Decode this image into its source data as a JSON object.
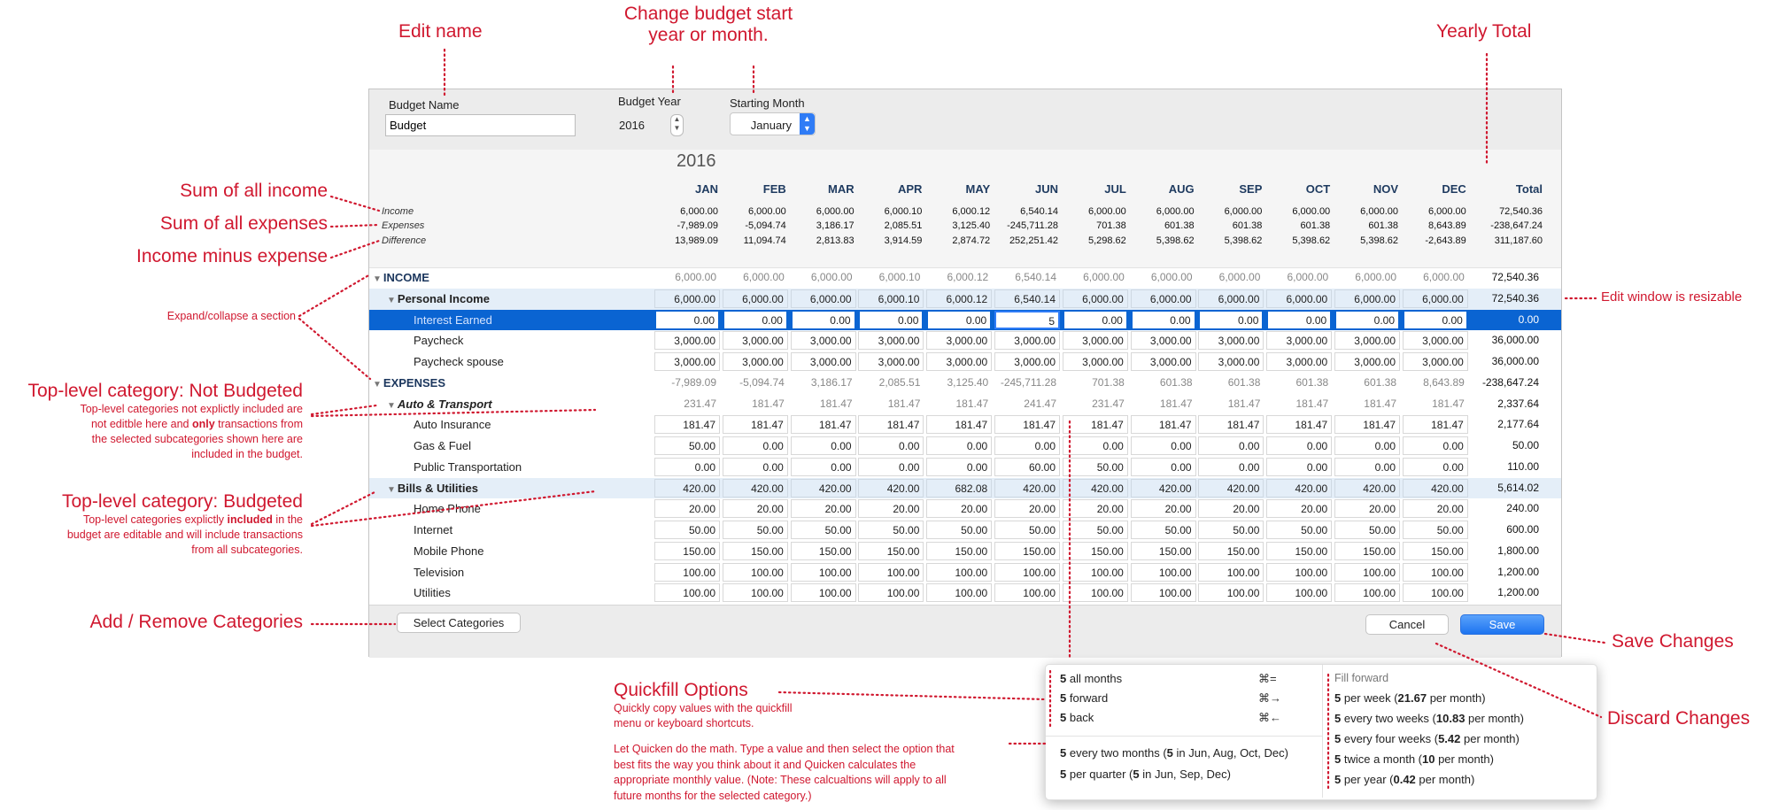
{
  "colors": {
    "accent": "#0a64d2",
    "annotation": "#d0182f",
    "budgeted_row": "#e4eef8",
    "save_button": "#1d74f0"
  },
  "form": {
    "budget_name_label": "Budget Name",
    "budget_name_value": "Budget",
    "budget_year_label": "Budget Year",
    "budget_year_value": "2016",
    "starting_month_label": "Starting Month",
    "starting_month_value": "January"
  },
  "table": {
    "year": "2016",
    "months": [
      "JAN",
      "FEB",
      "MAR",
      "APR",
      "MAY",
      "JUN",
      "JUL",
      "AUG",
      "SEP",
      "OCT",
      "NOV",
      "DEC"
    ],
    "total_label": "Total",
    "summary": [
      {
        "label": "Income",
        "values": [
          "6,000.00",
          "6,000.00",
          "6,000.00",
          "6,000.10",
          "6,000.12",
          "6,540.14",
          "6,000.00",
          "6,000.00",
          "6,000.00",
          "6,000.00",
          "6,000.00",
          "6,000.00"
        ],
        "total": "72,540.36"
      },
      {
        "label": "Expenses",
        "values": [
          "-7,989.09",
          "-5,094.74",
          "3,186.17",
          "2,085.51",
          "3,125.40",
          "-245,711.28",
          "701.38",
          "601.38",
          "601.38",
          "601.38",
          "601.38",
          "8,643.89"
        ],
        "total": "-238,647.24"
      },
      {
        "label": "Difference",
        "values": [
          "13,989.09",
          "11,094.74",
          "2,813.83",
          "3,914.59",
          "2,874.72",
          "252,251.42",
          "5,298.62",
          "5,398.62",
          "5,398.62",
          "5,398.62",
          "5,398.62",
          "-2,643.89"
        ],
        "total": "311,187.60"
      }
    ],
    "rows": [
      {
        "kind": "section",
        "name": "INCOME",
        "values": [
          "6,000.00",
          "6,000.00",
          "6,000.00",
          "6,000.10",
          "6,000.12",
          "6,540.14",
          "6,000.00",
          "6,000.00",
          "6,000.00",
          "6,000.00",
          "6,000.00",
          "6,000.00"
        ],
        "total": "72,540.36"
      },
      {
        "kind": "budgeted",
        "name": "Personal Income",
        "values": [
          "6,000.00",
          "6,000.00",
          "6,000.00",
          "6,000.10",
          "6,000.12",
          "6,540.14",
          "6,000.00",
          "6,000.00",
          "6,000.00",
          "6,000.00",
          "6,000.00",
          "6,000.00"
        ],
        "total": "72,540.36"
      },
      {
        "kind": "selected",
        "name": "Interest Earned",
        "values": [
          "0.00",
          "0.00",
          "0.00",
          "0.00",
          "0.00",
          "5",
          "0.00",
          "0.00",
          "0.00",
          "0.00",
          "0.00",
          "0.00"
        ],
        "total": "0.00"
      },
      {
        "kind": "leaf",
        "name": "Paycheck",
        "values": [
          "3,000.00",
          "3,000.00",
          "3,000.00",
          "3,000.00",
          "3,000.00",
          "3,000.00",
          "3,000.00",
          "3,000.00",
          "3,000.00",
          "3,000.00",
          "3,000.00",
          "3,000.00"
        ],
        "total": "36,000.00"
      },
      {
        "kind": "leaf",
        "name": "Paycheck spouse",
        "values": [
          "3,000.00",
          "3,000.00",
          "3,000.00",
          "3,000.00",
          "3,000.00",
          "3,000.00",
          "3,000.00",
          "3,000.00",
          "3,000.00",
          "3,000.00",
          "3,000.00",
          "3,000.00"
        ],
        "total": "36,000.00"
      },
      {
        "kind": "section",
        "name": "EXPENSES",
        "values": [
          "-7,989.09",
          "-5,094.74",
          "3,186.17",
          "2,085.51",
          "3,125.40",
          "-245,711.28",
          "701.38",
          "601.38",
          "601.38",
          "601.38",
          "601.38",
          "8,643.89"
        ],
        "total": "-238,647.24"
      },
      {
        "kind": "notbudgeted",
        "name": "Auto & Transport",
        "values": [
          "231.47",
          "181.47",
          "181.47",
          "181.47",
          "181.47",
          "241.47",
          "231.47",
          "181.47",
          "181.47",
          "181.47",
          "181.47",
          "181.47"
        ],
        "total": "2,337.64"
      },
      {
        "kind": "leaf",
        "name": "Auto Insurance",
        "values": [
          "181.47",
          "181.47",
          "181.47",
          "181.47",
          "181.47",
          "181.47",
          "181.47",
          "181.47",
          "181.47",
          "181.47",
          "181.47",
          "181.47"
        ],
        "total": "2,177.64"
      },
      {
        "kind": "leaf",
        "name": "Gas & Fuel",
        "values": [
          "50.00",
          "0.00",
          "0.00",
          "0.00",
          "0.00",
          "0.00",
          "0.00",
          "0.00",
          "0.00",
          "0.00",
          "0.00",
          "0.00"
        ],
        "total": "50.00"
      },
      {
        "kind": "leaf",
        "name": "Public Transportation",
        "values": [
          "0.00",
          "0.00",
          "0.00",
          "0.00",
          "0.00",
          "60.00",
          "50.00",
          "0.00",
          "0.00",
          "0.00",
          "0.00",
          "0.00"
        ],
        "total": "110.00"
      },
      {
        "kind": "budgeted",
        "name": "Bills & Utilities",
        "values": [
          "420.00",
          "420.00",
          "420.00",
          "420.00",
          "682.08",
          "420.00",
          "420.00",
          "420.00",
          "420.00",
          "420.00",
          "420.00",
          "420.00"
        ],
        "total": "5,614.02"
      },
      {
        "kind": "leaf",
        "name": "Home Phone",
        "values": [
          "20.00",
          "20.00",
          "20.00",
          "20.00",
          "20.00",
          "20.00",
          "20.00",
          "20.00",
          "20.00",
          "20.00",
          "20.00",
          "20.00"
        ],
        "total": "240.00"
      },
      {
        "kind": "leaf",
        "name": "Internet",
        "values": [
          "50.00",
          "50.00",
          "50.00",
          "50.00",
          "50.00",
          "50.00",
          "50.00",
          "50.00",
          "50.00",
          "50.00",
          "50.00",
          "50.00"
        ],
        "total": "600.00"
      },
      {
        "kind": "leaf",
        "name": "Mobile Phone",
        "values": [
          "150.00",
          "150.00",
          "150.00",
          "150.00",
          "150.00",
          "150.00",
          "150.00",
          "150.00",
          "150.00",
          "150.00",
          "150.00",
          "150.00"
        ],
        "total": "1,800.00"
      },
      {
        "kind": "leaf",
        "name": "Television",
        "values": [
          "100.00",
          "100.00",
          "100.00",
          "100.00",
          "100.00",
          "100.00",
          "100.00",
          "100.00",
          "100.00",
          "100.00",
          "100.00",
          "100.00"
        ],
        "total": "1,200.00"
      },
      {
        "kind": "leaf",
        "name": "Utilities",
        "values": [
          "100.00",
          "100.00",
          "100.00",
          "100.00",
          "100.00",
          "100.00",
          "100.00",
          "100.00",
          "100.00",
          "100.00",
          "100.00",
          "100.00"
        ],
        "total": "1,200.00"
      }
    ]
  },
  "quickfill": {
    "items": [
      {
        "parts": [
          {
            "b": "5"
          },
          {
            "t": " all months"
          }
        ],
        "shortcut": "⌘="
      },
      {
        "parts": [
          {
            "b": "5"
          },
          {
            "t": " forward"
          }
        ],
        "shortcut": "⌘→"
      },
      {
        "parts": [
          {
            "b": "5"
          },
          {
            "t": " back"
          }
        ],
        "shortcut": "⌘←"
      }
    ],
    "fill_forward_label": "Fill forward",
    "fill_items": [
      [
        {
          "b": "5"
        },
        {
          "t": " per week ("
        },
        {
          "b": "21.67"
        },
        {
          "t": " per month)"
        }
      ],
      [
        {
          "b": "5"
        },
        {
          "t": " every two weeks ("
        },
        {
          "b": "10.83"
        },
        {
          "t": " per month)"
        }
      ],
      [
        {
          "b": "5"
        },
        {
          "t": " every four weeks ("
        },
        {
          "b": "5.42"
        },
        {
          "t": " per month)"
        }
      ],
      [
        {
          "b": "5"
        },
        {
          "t": " twice a month ("
        },
        {
          "b": "10"
        },
        {
          "t": " per month)"
        }
      ],
      [
        {
          "b": "5"
        },
        {
          "t": " per year ("
        },
        {
          "b": "0.42"
        },
        {
          "t": " per month)"
        }
      ]
    ],
    "period_items": [
      [
        {
          "b": "5"
        },
        {
          "t": " every two months ("
        },
        {
          "b": "5"
        },
        {
          "t": " in Jun, Aug, Oct, Dec)"
        }
      ],
      [
        {
          "b": "5"
        },
        {
          "t": " per quarter ("
        },
        {
          "b": "5"
        },
        {
          "t": " in Jun, Sep, Dec)"
        }
      ]
    ]
  },
  "footer": {
    "select_categories": "Select Categories",
    "cancel": "Cancel",
    "save": "Save"
  },
  "annotations": {
    "edit_name": "Edit name",
    "change_start_1": "Change budget start",
    "change_start_2": "year or month.",
    "yearly_total": "Yearly Total",
    "sum_income": "Sum of all income",
    "sum_expenses": "Sum of all expenses",
    "income_minus": "Income minus expense",
    "expand_collapse": "Expand/collapse a section",
    "resizable": "Edit window is resizable",
    "not_budgeted_title": "Top-level category: Not Budgeted",
    "not_budgeted_1": "Top-level categories not explictly included are",
    "not_budgeted_2a": "not editble here and ",
    "not_budgeted_2b": "only",
    "not_budgeted_2c": " transactions from",
    "not_budgeted_3": "the selected subcategories shown here are",
    "not_budgeted_4": "included in the budget.",
    "budgeted_title": "Top-level category: Budgeted",
    "budgeted_1a": "Top-level categories explictly ",
    "budgeted_1b": "included",
    "budgeted_1c": " in the",
    "budgeted_2": "budget are editable and will include transactions",
    "budgeted_3": "from all subcategories.",
    "add_remove": "Add / Remove Categories",
    "quickfill_title": "Quickfill Options",
    "quickfill_1": "Quickly copy values with the quickfill",
    "quickfill_2": "menu or keyboard shortcuts.",
    "math_1": "Let Quicken do the math. Type a value and then select the option that",
    "math_2": "best fits the way you think about it and Quicken calculates the",
    "math_3": "appropriate monthly value. (Note: These calcualtions will apply to all",
    "math_4": "future months for the selected category.)",
    "save_changes": "Save Changes",
    "discard_changes": "Discard Changes"
  }
}
